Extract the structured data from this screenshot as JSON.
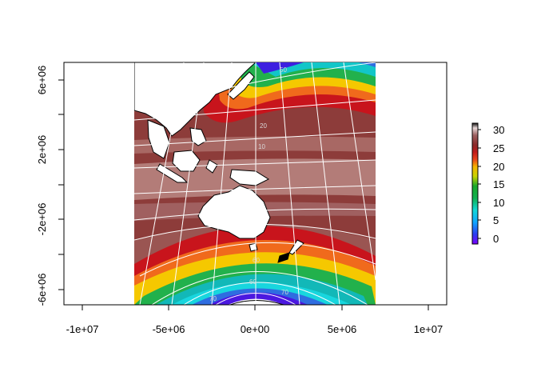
{
  "map": {
    "projection_note": "",
    "x_axis": {
      "ticks": [
        "-1e+07",
        "-5e+06",
        "0e+00",
        "5e+06",
        "1e+07"
      ],
      "values": [
        -10000000,
        -5000000,
        0,
        5000000,
        10000000
      ]
    },
    "y_axis": {
      "ticks": [
        "-6e+06",
        "-2e+06",
        "2e+06",
        "6e+06"
      ],
      "values": [
        -6000000,
        -2000000,
        2000000,
        6000000
      ]
    },
    "graticule_labels": [
      "50",
      "20",
      "10",
      "60",
      "70",
      "40"
    ],
    "legend": {
      "ticks": [
        "30",
        "25",
        "20",
        "15",
        "10",
        "5",
        "0"
      ],
      "range": [
        -2,
        32
      ]
    }
  },
  "colors": {
    "warm_brown": "#8b3a3a",
    "light_brown": "#b07a76",
    "mid_brown": "#9c5350",
    "red": "#d7191c",
    "orange": "#f57c1f",
    "yellow": "#f5d00a",
    "green": "#22b14c",
    "teal": "#15a9a4",
    "cyan": "#19d3dd",
    "blue": "#1d4fd8",
    "violet": "#4b18e0"
  }
}
